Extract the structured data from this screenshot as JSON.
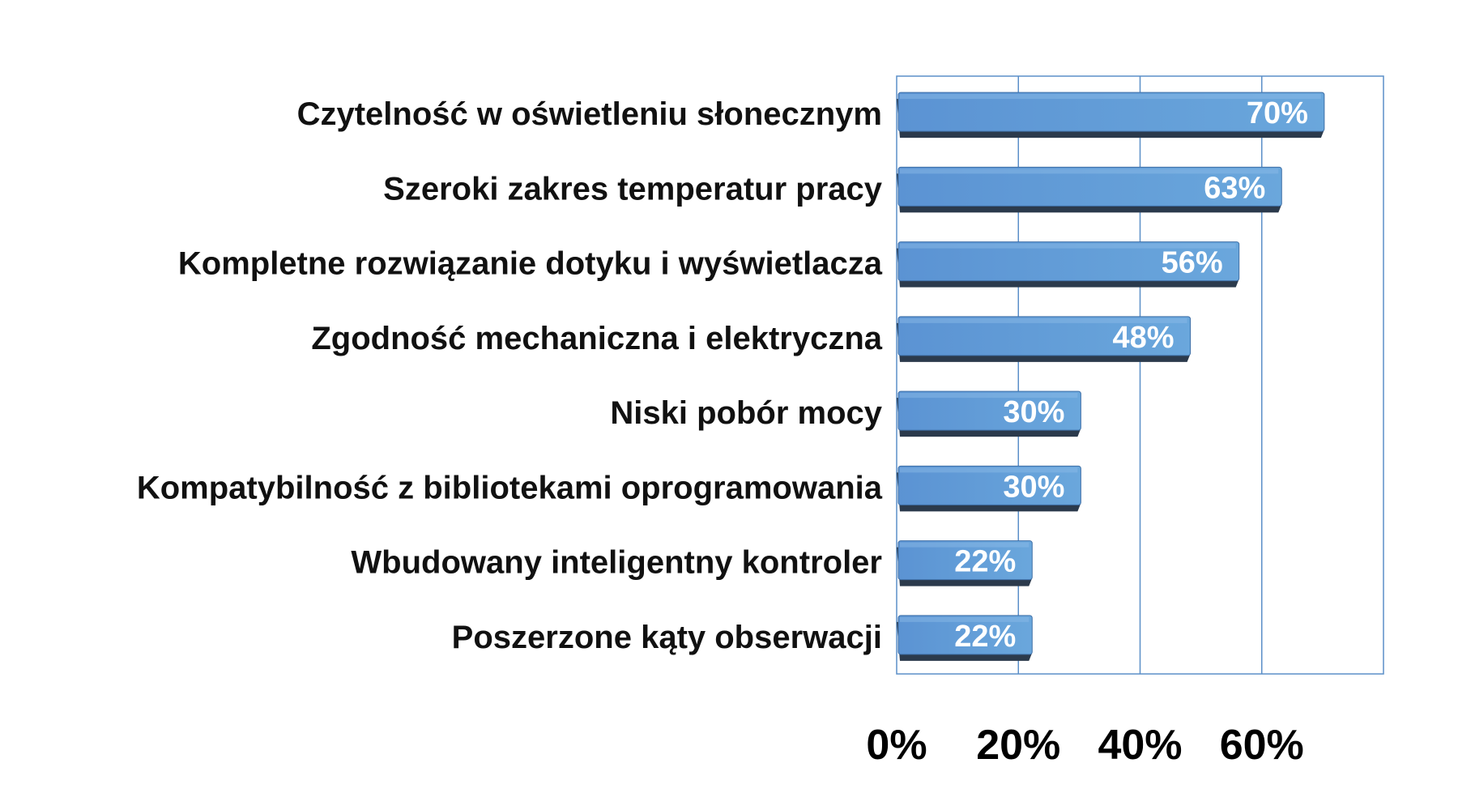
{
  "chart_data": {
    "type": "bar",
    "orientation": "horizontal",
    "categories": [
      "Czytelność w oświetleniu słonecznym",
      "Szeroki zakres temperatur pracy",
      "Kompletne rozwiązanie dotyku i wyświetlacza",
      "Zgodność mechaniczna i elektryczna",
      "Niski pobór mocy",
      "Kompatybilność z bibliotekami oprogramowania",
      "Wbudowany inteligentny kontroler",
      "Poszerzone kąty obserwacji"
    ],
    "values": [
      70,
      63,
      56,
      48,
      30,
      30,
      22,
      22
    ],
    "value_labels": [
      "70%",
      "63%",
      "56%",
      "48%",
      "30%",
      "30%",
      "22%",
      "22%"
    ],
    "xticks": [
      0,
      20,
      40,
      60
    ],
    "xtick_labels": [
      "0%",
      "20%",
      "40%",
      "60%"
    ],
    "xlim": [
      0,
      80
    ],
    "grid": true,
    "legend": "none",
    "bar_color": "#5b93d3",
    "bar_color_light": "#6aa7dc",
    "bar_shadow": "#2b3a4c",
    "title": "",
    "xlabel": "",
    "ylabel": ""
  }
}
